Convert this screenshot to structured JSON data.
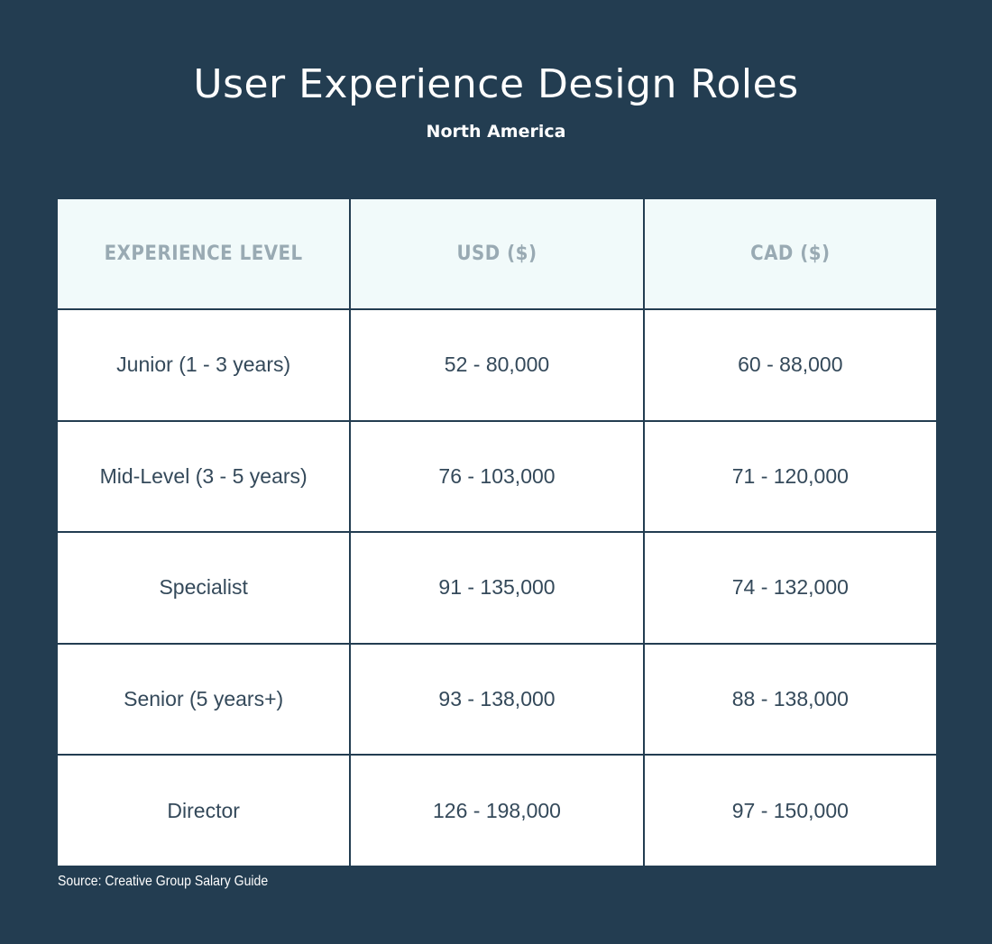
{
  "chart_data": {
    "type": "table",
    "title": "User Experience Design Roles",
    "subtitle": "North America",
    "columns": [
      "EXPERIENCE LEVEL",
      "USD ($)",
      "CAD ($)"
    ],
    "rows": [
      [
        "Junior (1 - 3 years)",
        "52 - 80,000",
        "60 - 88,000"
      ],
      [
        "Mid-Level (3 - 5 years)",
        "76 - 103,000",
        "71 - 120,000"
      ],
      [
        "Specialist",
        "91 - 135,000",
        "74 - 132,000"
      ],
      [
        "Senior (5 years+)",
        "93 - 138,000",
        "88 - 138,000"
      ],
      [
        "Director",
        "126 - 198,000",
        "97 - 150,000"
      ]
    ],
    "source": "Source: Creative Group Salary Guide"
  },
  "colors": {
    "background": "#233d51",
    "header_background": "#f1fafa",
    "header_text": "#99aab3",
    "cell_text": "#34495a"
  }
}
